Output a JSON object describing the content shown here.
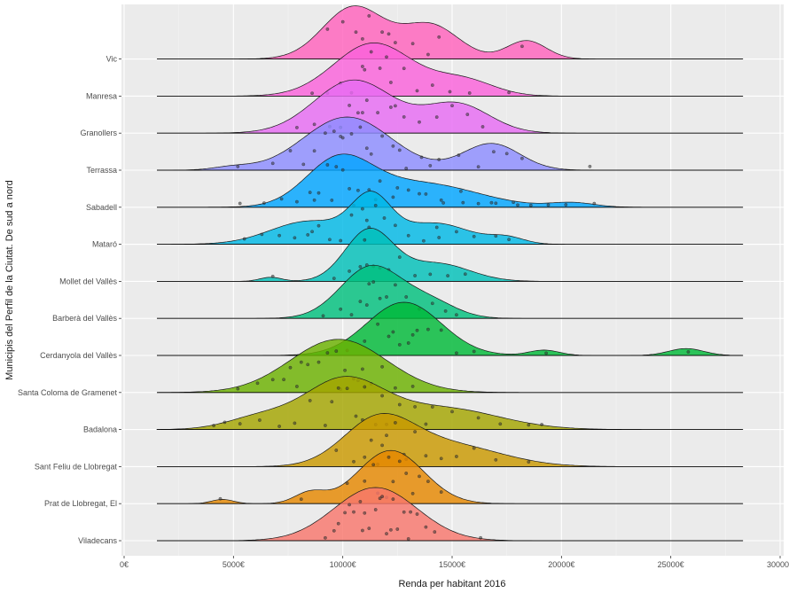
{
  "chart_data": {
    "type": "ridgeline",
    "xlabel": "Renda per habitant 2016",
    "ylabel": "Municipis del Perfil de la Ciutat. De sud a nord",
    "xlim": [
      0,
      30000
    ],
    "x_ticks": [
      0,
      5000,
      10000,
      15000,
      20000,
      25000,
      30000
    ],
    "x_tick_labels": [
      "0€",
      "5000€",
      "10000€",
      "15000€",
      "20000€",
      "25000€",
      "30000€"
    ],
    "grid": true,
    "legend": "none",
    "series": [
      {
        "name": "Viladecans",
        "color": "#F8766D",
        "peaks": [
          {
            "mu": 11500,
            "sd": 1900,
            "w": 1.0
          }
        ],
        "points": [
          9200,
          9800,
          10100,
          10500,
          10800,
          11000,
          11200,
          11500,
          11800,
          12000,
          12200,
          12500,
          12800,
          13000,
          13400,
          13800,
          14200,
          16300,
          10300,
          11700,
          12300,
          9600,
          13100,
          10900
        ]
      },
      {
        "name": "Prat de Llobregat, El",
        "color": "#E58700",
        "peaks": [
          {
            "mu": 4500,
            "sd": 500,
            "w": 0.08
          },
          {
            "mu": 8500,
            "sd": 700,
            "w": 0.2
          },
          {
            "mu": 12200,
            "sd": 1500,
            "w": 1.0
          }
        ],
        "points": [
          4400,
          8100,
          10200,
          11000,
          11400,
          11800,
          12000,
          12300,
          12600,
          12900,
          13200,
          13500,
          13900,
          14500,
          11600,
          12100
        ]
      },
      {
        "name": "Sant Feliu de Llobregat",
        "color": "#C99800",
        "peaks": [
          {
            "mu": 11600,
            "sd": 1600,
            "w": 1.0
          },
          {
            "mu": 14800,
            "sd": 2400,
            "w": 0.5
          }
        ],
        "points": [
          9700,
          10500,
          11000,
          11300,
          11600,
          12000,
          12400,
          12800,
          13300,
          13800,
          14500,
          15200,
          16000,
          17000,
          18500,
          11800,
          12900
        ]
      },
      {
        "name": "Badalona",
        "color": "#A3A500",
        "peaks": [
          {
            "mu": 6200,
            "sd": 1500,
            "w": 0.25
          },
          {
            "mu": 10000,
            "sd": 1800,
            "w": 1.0
          },
          {
            "mu": 14500,
            "sd": 2600,
            "w": 0.45
          }
        ],
        "points": [
          4100,
          4600,
          5300,
          6200,
          7100,
          7800,
          8500,
          9200,
          9800,
          10200,
          10600,
          11000,
          11500,
          12000,
          12600,
          13300,
          14100,
          15000,
          16200,
          17200,
          18500,
          19100,
          9500,
          10900,
          11800,
          13800
        ]
      },
      {
        "name": "Santa Coloma de Gramenet",
        "color": "#6BB100",
        "peaks": [
          {
            "mu": 9800,
            "sd": 2200,
            "w": 1.0
          }
        ],
        "points": [
          5200,
          6100,
          6800,
          7300,
          7900,
          8400,
          8900,
          9300,
          9700,
          10100,
          10500,
          10900,
          11300,
          11800,
          12400,
          13200,
          8100,
          9900,
          10700,
          7600
        ]
      },
      {
        "name": "Cerdanyola del Vallès",
        "color": "#00BA38",
        "peaks": [
          {
            "mu": 12800,
            "sd": 1700,
            "w": 1.0
          },
          {
            "mu": 19200,
            "sd": 700,
            "w": 0.1
          },
          {
            "mu": 25700,
            "sd": 800,
            "w": 0.13
          }
        ],
        "points": [
          10200,
          11000,
          11600,
          12100,
          12600,
          13000,
          13400,
          13900,
          14500,
          15200,
          16000,
          19300,
          25800,
          12300,
          13200
        ]
      },
      {
        "name": "Barberà del Vallès",
        "color": "#00BF7D",
        "peaks": [
          {
            "mu": 11300,
            "sd": 1400,
            "w": 1.0
          },
          {
            "mu": 14000,
            "sd": 1200,
            "w": 0.3
          }
        ],
        "points": [
          9100,
          9900,
          10400,
          10800,
          11100,
          11400,
          11700,
          12000,
          12400,
          12900,
          13500,
          14100,
          14700,
          15200,
          11200
        ]
      },
      {
        "name": "Mollet del Vallès",
        "color": "#00C0B8",
        "peaks": [
          {
            "mu": 6700,
            "sd": 500,
            "w": 0.08
          },
          {
            "mu": 11200,
            "sd": 1100,
            "w": 1.0
          },
          {
            "mu": 14300,
            "sd": 1500,
            "w": 0.35
          }
        ],
        "points": [
          6800,
          9600,
          10300,
          10800,
          11100,
          11400,
          11700,
          12100,
          12600,
          13300,
          14000,
          14800,
          15600,
          11000
        ]
      },
      {
        "name": "Mataró",
        "color": "#00B8E5",
        "peaks": [
          {
            "mu": 8500,
            "sd": 1800,
            "w": 0.55
          },
          {
            "mu": 11300,
            "sd": 900,
            "w": 1.0
          },
          {
            "mu": 14200,
            "sd": 1600,
            "w": 0.5
          },
          {
            "mu": 17500,
            "sd": 800,
            "w": 0.15
          }
        ],
        "points": [
          5500,
          6300,
          7100,
          7800,
          8400,
          8900,
          9400,
          9900,
          10400,
          10900,
          11200,
          11500,
          11900,
          12400,
          13000,
          13700,
          14400,
          15200,
          16000,
          17000,
          17600,
          11100,
          8600,
          14300
        ]
      },
      {
        "name": "Sabadell",
        "color": "#00A5FF",
        "peaks": [
          {
            "mu": 9800,
            "sd": 1500,
            "w": 1.0
          },
          {
            "mu": 13500,
            "sd": 2600,
            "w": 0.55
          },
          {
            "mu": 20500,
            "sd": 1000,
            "w": 0.1
          }
        ],
        "points": [
          5300,
          6400,
          7200,
          7900,
          8500,
          8900,
          9300,
          9700,
          10000,
          10300,
          10700,
          11200,
          11700,
          12300,
          13000,
          13800,
          14600,
          15400,
          16200,
          17000,
          17800,
          18600,
          19400,
          20200,
          21500,
          9500,
          10500,
          11500,
          12500,
          13500,
          14500,
          15500,
          8700,
          16800,
          18000
        ]
      },
      {
        "name": "Terrassa",
        "color": "#8C8CFF",
        "peaks": [
          {
            "mu": 5000,
            "sd": 900,
            "w": 0.06
          },
          {
            "mu": 10200,
            "sd": 2000,
            "w": 1.0
          },
          {
            "mu": 16800,
            "sd": 1300,
            "w": 0.5
          }
        ],
        "points": [
          5200,
          6800,
          7600,
          8200,
          8700,
          9200,
          9600,
          10000,
          10400,
          10800,
          11300,
          11800,
          12300,
          12900,
          13600,
          14400,
          15300,
          16200,
          16900,
          17500,
          18200,
          21300,
          9900,
          11100,
          12600,
          14000
        ]
      },
      {
        "name": "Granollers",
        "color": "#E76BF3",
        "peaks": [
          {
            "mu": 10500,
            "sd": 1800,
            "w": 1.0
          },
          {
            "mu": 15200,
            "sd": 1500,
            "w": 0.55
          }
        ],
        "points": [
          7900,
          8700,
          9400,
          9900,
          10300,
          10700,
          11100,
          11600,
          12200,
          12800,
          13500,
          14300,
          15000,
          15700,
          16400,
          10900,
          12400
        ]
      },
      {
        "name": "Manresa",
        "color": "#FA62DB",
        "peaks": [
          {
            "mu": 11400,
            "sd": 1800,
            "w": 1.0
          },
          {
            "mu": 15500,
            "sd": 1400,
            "w": 0.3
          }
        ],
        "points": [
          8600,
          9300,
          9900,
          10400,
          10900,
          11300,
          11700,
          12200,
          12800,
          13400,
          14100,
          14900,
          15800,
          17600,
          11000,
          12000
        ]
      },
      {
        "name": "Vic",
        "color": "#FF62BC",
        "peaks": [
          {
            "mu": 10500,
            "sd": 1400,
            "w": 0.85
          },
          {
            "mu": 14000,
            "sd": 1300,
            "w": 0.55
          },
          {
            "mu": 18400,
            "sd": 900,
            "w": 0.3
          }
        ],
        "points": [
          9300,
          10000,
          10600,
          11200,
          11800,
          12400,
          13200,
          13900,
          14400,
          18200,
          10900,
          12100
        ]
      }
    ]
  }
}
